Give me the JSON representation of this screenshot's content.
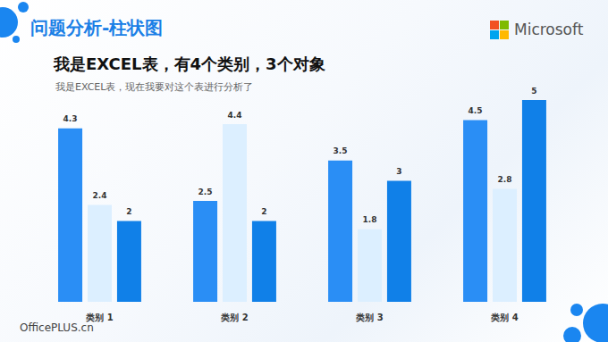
{
  "chart_data": {
    "type": "bar",
    "title": "问题分析-柱状图",
    "subtitle": "我是EXCEL表，有4个类别，3个对象",
    "annotations": [
      "我是EXCEL表，现在我要对这个表进行分析了",
      "Microsoft",
      "OfficePLUS.cn"
    ],
    "categories": [
      "类别 1",
      "类别 2",
      "类别 3",
      "类别 4"
    ],
    "series": [
      {
        "color": "#2a8ef5",
        "values": [
          4.3,
          2.5,
          3.5,
          4.5
        ]
      },
      {
        "color": "#dcefff",
        "values": [
          2.4,
          4.4,
          1.8,
          2.8
        ]
      },
      {
        "color": "#1080e8",
        "values": [
          2,
          2,
          3,
          5
        ]
      }
    ],
    "ylim": [
      0,
      5
    ],
    "grid": false,
    "data_labels": true,
    "tick_labels": "x"
  }
}
